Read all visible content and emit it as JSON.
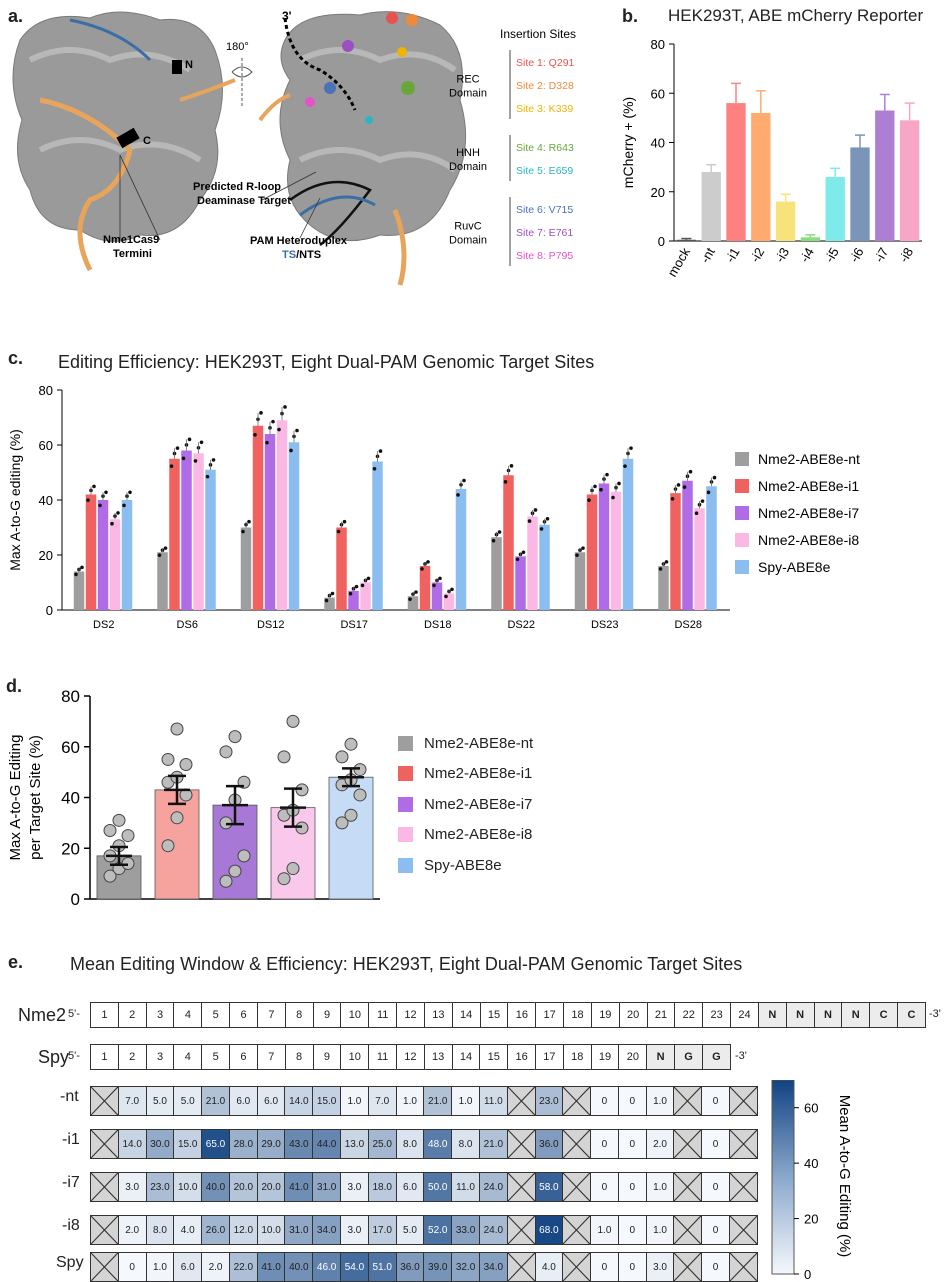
{
  "panel_a": {
    "label": "a.",
    "n_terminus": "N",
    "c_terminus": "C",
    "rotation": "180°",
    "three_prime": "3'",
    "caption_termini_line1": "Nme1Cas9",
    "caption_termini_line2": "Termini",
    "caption_rloop_line1": "Predicted R-loop",
    "caption_rloop_line2": "Deaminase Target",
    "caption_pam_line1": "PAM Heteroduplex",
    "caption_pam_ts": "TS",
    "caption_pam_nts": "/NTS",
    "insertion_title": "Insertion Sites",
    "domains": [
      {
        "name_line1": "REC",
        "name_line2": "Domain",
        "sites": [
          {
            "label": "Site 1: Q291",
            "color": "#e8524f"
          },
          {
            "label": "Site 2: D328",
            "color": "#ef8a3a"
          },
          {
            "label": "Site 3: K339",
            "color": "#f0b400"
          }
        ]
      },
      {
        "name_line1": "HNH",
        "name_line2": "Domain",
        "sites": [
          {
            "label": "Site 4: R643",
            "color": "#6aa53a"
          },
          {
            "label": "Site 5: E659",
            "color": "#2bb6c0"
          }
        ]
      },
      {
        "name_line1": "RuvC",
        "name_line2": "Domain",
        "sites": [
          {
            "label": "Site 6: V715",
            "color": "#4a72b8"
          },
          {
            "label": "Site 7: E761",
            "color": "#9b4fc0"
          },
          {
            "label": "Site 8: P795",
            "color": "#e055c8"
          }
        ]
      }
    ]
  },
  "panel_b": {
    "label": "b.",
    "title": "HEK293T, ABE mCherry Reporter"
  },
  "panel_c": {
    "label": "c.",
    "title": "Editing Efficiency:  HEK293T, Eight Dual-PAM Genomic Target Sites"
  },
  "panel_d": {
    "label": "d.",
    "legend": [
      "Nme2-ABE8e-nt",
      "Nme2-ABE8e-i1",
      "Nme2-ABE8e-i7",
      "Nme2-ABE8e-i8",
      "Spy-ABE8e"
    ]
  },
  "panel_e": {
    "label": "e.",
    "title": "Mean Editing Window & Efficiency:  HEK293T, Eight Dual-PAM Genomic Target Sites",
    "nme2_label": "Nme2",
    "spy_label": "Spy",
    "five_prime": "5'-",
    "three_prime": "-3'",
    "nme2_seq": [
      "1",
      "2",
      "3",
      "4",
      "5",
      "6",
      "7",
      "8",
      "9",
      "10",
      "11",
      "12",
      "13",
      "14",
      "15",
      "16",
      "17",
      "18",
      "19",
      "20",
      "21",
      "22",
      "23",
      "24",
      "N",
      "N",
      "N",
      "N",
      "C",
      "C"
    ],
    "spy_seq": [
      "1",
      "2",
      "3",
      "4",
      "5",
      "6",
      "7",
      "8",
      "9",
      "10",
      "11",
      "12",
      "13",
      "14",
      "15",
      "16",
      "17",
      "18",
      "19",
      "20",
      "N",
      "G",
      "G"
    ],
    "colorbar_label": "Mean A-to-G Editing (%)",
    "colorbar_ticks": [
      "0",
      "20",
      "40",
      "60"
    ],
    "colorbar_max": 70,
    "rows": [
      {
        "label": "-nt",
        "cells": [
          "X",
          "7.0",
          "5.0",
          "5.0",
          "21.0",
          "6.0",
          "6.0",
          "14.0",
          "15.0",
          "1.0",
          "7.0",
          "1.0",
          "21.0",
          "1.0",
          "11.0",
          "X",
          "23.0",
          "X",
          "0",
          "0",
          "1.0",
          "X",
          "0",
          "X"
        ]
      },
      {
        "label": "-i1",
        "cells": [
          "X",
          "14.0",
          "30.0",
          "15.0",
          "65.0",
          "28.0",
          "29.0",
          "43.0",
          "44.0",
          "13.0",
          "25.0",
          "8.0",
          "48.0",
          "8.0",
          "21.0",
          "X",
          "36.0",
          "X",
          "0",
          "0",
          "2.0",
          "X",
          "0",
          "X"
        ]
      },
      {
        "label": "-i7",
        "cells": [
          "X",
          "3.0",
          "23.0",
          "10.0",
          "40.0",
          "20.0",
          "20.0",
          "41.0",
          "31.0",
          "3.0",
          "18.0",
          "6.0",
          "50.0",
          "11.0",
          "24.0",
          "X",
          "58.0",
          "X",
          "0",
          "0",
          "1.0",
          "X",
          "0",
          "X"
        ]
      },
      {
        "label": "-i8",
        "cells": [
          "X",
          "2.0",
          "8.0",
          "4.0",
          "26.0",
          "12.0",
          "10.0",
          "31.0",
          "34.0",
          "3.0",
          "17.0",
          "5.0",
          "52.0",
          "33.0",
          "24.0",
          "X",
          "68.0",
          "X",
          "1.0",
          "0",
          "1.0",
          "X",
          "0",
          "X"
        ]
      },
      {
        "label": "Spy",
        "cells": [
          "X",
          "0",
          "1.0",
          "6.0",
          "2.0",
          "22.0",
          "41.0",
          "40.0",
          "46.0",
          "54.0",
          "51.0",
          "36.0",
          "39.0",
          "32.0",
          "34.0",
          "X",
          "4.0",
          "X",
          "0",
          "0",
          "3.0",
          "X",
          "0",
          "X"
        ]
      }
    ]
  },
  "chart_data": [
    {
      "type": "bar",
      "id": "b",
      "title": "HEK293T, ABE mCherry Reporter",
      "ylabel": "mCherry + (%)",
      "ylim": [
        0,
        80
      ],
      "yticks": [
        0,
        20,
        40,
        60,
        80
      ],
      "categories": [
        "mock",
        "-nt",
        "-i1",
        "-i2",
        "-i3",
        "-i4",
        "-i5",
        "-i6",
        "-i7",
        "-i8"
      ],
      "values": [
        0.5,
        28,
        56,
        52,
        16,
        1.5,
        26,
        38,
        53,
        49
      ],
      "errors": [
        0.5,
        3,
        8,
        9,
        3,
        1,
        3.5,
        5,
        6.5,
        7
      ],
      "colors": [
        "#555555",
        "#cccccc",
        "#ff8080",
        "#ffab70",
        "#f7e37a",
        "#86df7e",
        "#7eeaea",
        "#7a95b8",
        "#ad7fd2",
        "#f7a6c6"
      ]
    },
    {
      "type": "bar",
      "id": "c",
      "title": "Editing Efficiency:  HEK293T, Eight Dual-PAM Genomic Target Sites",
      "ylabel": "Max A-to-G editing (%)",
      "ylim": [
        0,
        80
      ],
      "yticks": [
        0,
        20,
        40,
        60,
        80
      ],
      "categories": [
        "DS2",
        "DS6",
        "DS12",
        "DS17",
        "DS18",
        "DS22",
        "DS23",
        "DS28"
      ],
      "series": [
        {
          "name": "Nme2-ABE8e-nt",
          "color": "#9e9e9e",
          "values": [
            14,
            21,
            30,
            4.5,
            5,
            26.5,
            21,
            16
          ]
        },
        {
          "name": "Nme2-ABE8e-i1",
          "color": "#f0625f",
          "values": [
            42,
            55,
            67,
            30,
            16,
            49,
            42,
            42.5
          ]
        },
        {
          "name": "Nme2-ABE8e-i7",
          "color": "#b06ce6",
          "values": [
            40,
            58,
            64,
            7,
            10,
            19.5,
            46,
            47
          ]
        },
        {
          "name": "Nme2-ABE8e-i8",
          "color": "#fbb8e4",
          "values": [
            33,
            57,
            69,
            10,
            6,
            34,
            43,
            37
          ]
        },
        {
          "name": "Spy-ABE8e",
          "color": "#8cbdf0",
          "values": [
            40,
            51,
            61,
            54,
            44,
            31,
            55,
            45
          ]
        }
      ]
    },
    {
      "type": "bar",
      "id": "d",
      "ylabel_line1": "Max A-to-G Editing",
      "ylabel_line2": "per Target Site (%)",
      "ylim": [
        0,
        80
      ],
      "yticks": [
        0,
        20,
        40,
        60,
        80
      ],
      "categories": [
        "Nme2-ABE8e-nt",
        "Nme2-ABE8e-i1",
        "Nme2-ABE8e-i7",
        "Nme2-ABE8e-i8",
        "Spy-ABE8e"
      ],
      "values": [
        17,
        43,
        37,
        36,
        48
      ],
      "sem": [
        3.5,
        5.5,
        7.5,
        7.5,
        3.5
      ],
      "colors": [
        "#9e9e9e",
        "#f6a3a0",
        "#a778d6",
        "#fac8ea",
        "#c6dcf6"
      ],
      "points": [
        [
          9,
          12,
          14,
          17,
          21,
          25,
          27,
          31
        ],
        [
          21,
          32,
          41,
          46,
          48,
          53,
          55,
          67
        ],
        [
          7,
          11,
          17,
          30,
          39,
          46,
          58,
          64
        ],
        [
          8,
          12,
          28,
          33,
          35,
          43,
          56,
          70
        ],
        [
          30,
          33,
          41,
          45,
          47,
          51,
          56,
          61
        ]
      ]
    }
  ]
}
